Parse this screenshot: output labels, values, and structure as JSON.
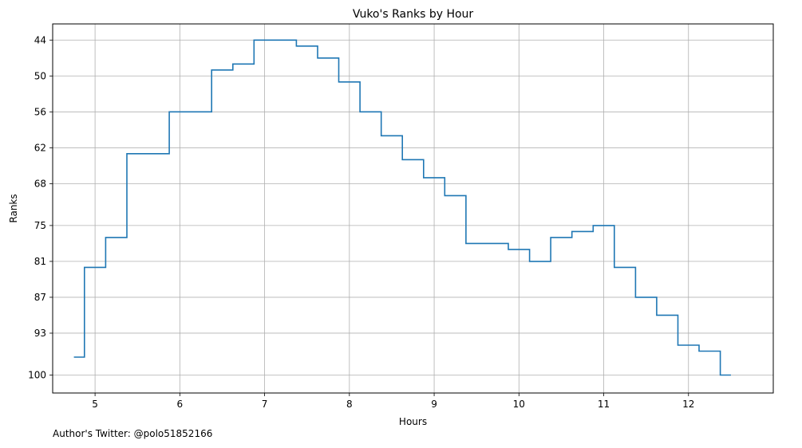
{
  "chart_data": {
    "type": "line",
    "drawstyle": "steps-post",
    "title": "Vuko's Ranks by Hour",
    "xlabel": "Hours",
    "ylabel": "Ranks",
    "xlim": [
      4.5,
      13.0
    ],
    "ylim": [
      103,
      41.3
    ],
    "y_inverted": true,
    "grid": true,
    "line_color": "#1f77b4",
    "x_ticks": [
      5,
      6,
      7,
      8,
      9,
      10,
      11,
      12
    ],
    "y_ticks": [
      44,
      50,
      56,
      62,
      68,
      75,
      81,
      87,
      93,
      100
    ],
    "series": [
      {
        "x": [
          4.75,
          4.875,
          5.125,
          5.375,
          5.875,
          6.375,
          6.625,
          6.875,
          7.375,
          7.625,
          7.875,
          8.125,
          8.375,
          8.625,
          8.875,
          9.125,
          9.375,
          9.875,
          10.125,
          10.375,
          10.625,
          10.875,
          11.125,
          11.375,
          11.625,
          11.875,
          12.125,
          12.375,
          12.5
        ],
        "y": [
          97,
          82,
          77,
          63,
          56,
          49,
          48,
          44,
          45,
          47,
          51,
          56,
          60,
          64,
          67,
          70,
          78,
          79,
          81,
          77,
          76,
          75,
          82,
          87,
          90,
          95,
          96,
          100,
          100
        ]
      }
    ]
  },
  "footer": {
    "text": "Author's Twitter: @polo51852166"
  }
}
